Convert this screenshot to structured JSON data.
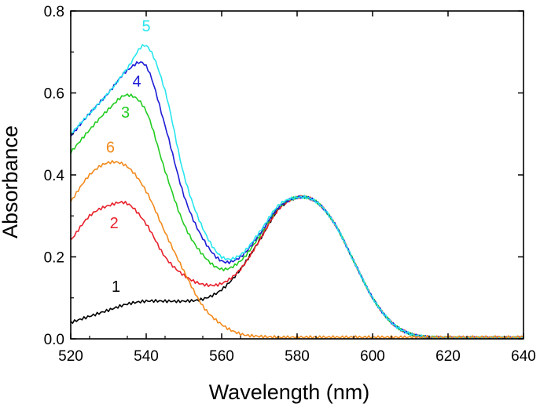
{
  "chart_data": {
    "type": "line",
    "title": "",
    "xlabel": "Wavelength (nm)",
    "ylabel": "Absorbance",
    "xlim": [
      520,
      640
    ],
    "ylim": [
      0.0,
      0.8
    ],
    "x_ticks": [
      520,
      540,
      560,
      580,
      600,
      620,
      640
    ],
    "y_ticks": [
      "0.0",
      "0.2",
      "0.4",
      "0.6",
      "0.8"
    ],
    "x": [
      520,
      525,
      530,
      535,
      540,
      545,
      550,
      555,
      560,
      565,
      570,
      575,
      580,
      585,
      590,
      595,
      600,
      605,
      610,
      615,
      620,
      625,
      630,
      635,
      640
    ],
    "series": [
      {
        "name": "1",
        "label": "1",
        "color": "#000000",
        "values": [
          0.04,
          0.055,
          0.07,
          0.085,
          0.092,
          0.092,
          0.092,
          0.097,
          0.12,
          0.17,
          0.24,
          0.315,
          0.345,
          0.335,
          0.28,
          0.19,
          0.1,
          0.04,
          0.012,
          0.004,
          0.002,
          0.002,
          0.002,
          0.002,
          0.002
        ]
      },
      {
        "name": "2",
        "label": "2",
        "color": "#e8212b",
        "values": [
          0.24,
          0.3,
          0.325,
          0.33,
          0.28,
          0.2,
          0.155,
          0.133,
          0.135,
          0.17,
          0.24,
          0.315,
          0.345,
          0.335,
          0.28,
          0.19,
          0.1,
          0.04,
          0.012,
          0.004,
          0.002,
          0.002,
          0.002,
          0.002,
          0.002
        ]
      },
      {
        "name": "3",
        "label": "3",
        "color": "#22cc22",
        "values": [
          0.455,
          0.51,
          0.56,
          0.595,
          0.555,
          0.41,
          0.28,
          0.205,
          0.17,
          0.19,
          0.25,
          0.32,
          0.345,
          0.335,
          0.28,
          0.19,
          0.1,
          0.04,
          0.012,
          0.004,
          0.002,
          0.002,
          0.002,
          0.002,
          0.002
        ]
      },
      {
        "name": "4",
        "label": "4",
        "color": "#1c1cd6",
        "values": [
          0.495,
          0.55,
          0.6,
          0.655,
          0.665,
          0.52,
          0.35,
          0.245,
          0.19,
          0.2,
          0.255,
          0.32,
          0.345,
          0.335,
          0.28,
          0.19,
          0.1,
          0.04,
          0.012,
          0.004,
          0.002,
          0.002,
          0.002,
          0.002,
          0.002
        ]
      },
      {
        "name": "5",
        "label": "5",
        "color": "#27e6ee",
        "values": [
          0.5,
          0.55,
          0.6,
          0.66,
          0.715,
          0.605,
          0.4,
          0.27,
          0.2,
          0.205,
          0.26,
          0.325,
          0.345,
          0.335,
          0.28,
          0.19,
          0.1,
          0.04,
          0.012,
          0.004,
          0.002,
          0.002,
          0.002,
          0.002,
          0.002
        ]
      },
      {
        "name": "6",
        "label": "6",
        "color": "#f28a1c",
        "values": [
          0.335,
          0.4,
          0.43,
          0.42,
          0.36,
          0.26,
          0.165,
          0.08,
          0.035,
          0.012,
          0.006,
          0.004,
          0.004,
          0.004,
          0.004,
          0.004,
          0.004,
          0.004,
          0.004,
          0.004,
          0.004,
          0.004,
          0.004,
          0.004,
          0.004
        ]
      }
    ],
    "annotations": [
      {
        "text": "1",
        "x": 532,
        "y": 0.115,
        "color": "#000000"
      },
      {
        "text": "2",
        "x": 531.5,
        "y": 0.27,
        "color": "#e8212b"
      },
      {
        "text": "3",
        "x": 534.5,
        "y": 0.54,
        "color": "#22cc22"
      },
      {
        "text": "4",
        "x": 537.5,
        "y": 0.615,
        "color": "#1c1cd6"
      },
      {
        "text": "5",
        "x": 540,
        "y": 0.75,
        "color": "#27e6ee"
      },
      {
        "text": "6",
        "x": 530.5,
        "y": 0.455,
        "color": "#f28a1c"
      }
    ],
    "grid": false,
    "legend": "none"
  }
}
